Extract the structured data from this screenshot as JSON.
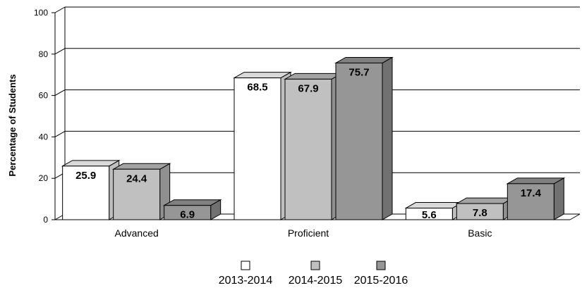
{
  "chart_data": {
    "type": "bar",
    "ylabel": "Percentage of Students",
    "xlabel": "",
    "ylim": [
      0,
      100
    ],
    "yticks": [
      "0",
      "20",
      "40",
      "60",
      "80",
      "100"
    ],
    "grid": true,
    "legend_position": "bottom",
    "categories": [
      "Advanced",
      "Proficient",
      "Basic"
    ],
    "series": [
      {
        "name": "2013-2014",
        "values": [
          25.9,
          68.5,
          5.6
        ],
        "labels": [
          "25.9",
          "68.5",
          "5.6"
        ],
        "color": "#ffffff"
      },
      {
        "name": "2014-2015",
        "values": [
          24.4,
          67.9,
          7.8
        ],
        "labels": [
          "24.4",
          "67.9",
          "7.8"
        ],
        "color": "#c0c0c0"
      },
      {
        "name": "2015-2016",
        "values": [
          6.9,
          75.7,
          17.4
        ],
        "labels": [
          "6.9",
          "75.7",
          "17.4"
        ],
        "color": "#969696"
      }
    ]
  }
}
